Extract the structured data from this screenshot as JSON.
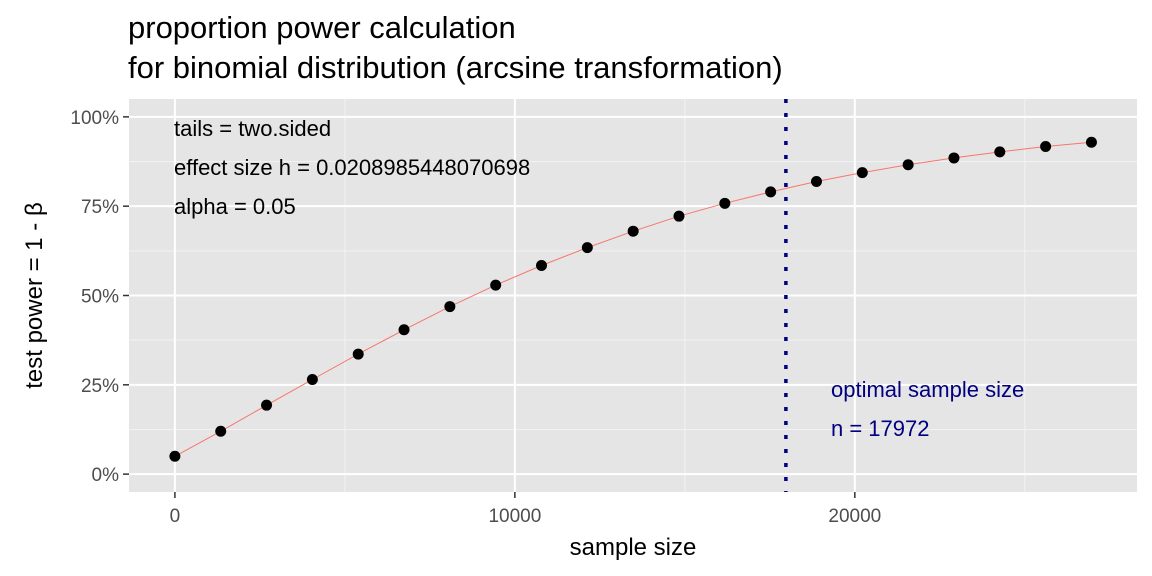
{
  "chart_data": {
    "type": "line",
    "title_line1": "proportion power calculation",
    "title_line2": "for binomial distribution (arcsine transformation)",
    "xlabel": "sample size",
    "ylabel": "test power = 1 - β",
    "xlim": [
      -1350,
      28300
    ],
    "ylim": [
      -0.05,
      1.05
    ],
    "x_ticks": [
      {
        "value": 0,
        "label": "0"
      },
      {
        "value": 10000,
        "label": "10000"
      },
      {
        "value": 20000,
        "label": "20000"
      }
    ],
    "y_ticks": [
      {
        "value": 0,
        "label": "0%"
      },
      {
        "value": 0.25,
        "label": "25%"
      },
      {
        "value": 0.5,
        "label": "50%"
      },
      {
        "value": 0.75,
        "label": "75%"
      },
      {
        "value": 1.0,
        "label": "100%"
      }
    ],
    "grid": true,
    "annotations": {
      "tails": "tails = two.sided",
      "effect_size": "effect size h = 0.0208985448070698",
      "alpha": "alpha = 0.05",
      "optimal_label": "optimal sample size",
      "optimal_n": "n = 17972"
    },
    "optimal_x": 17972,
    "series": [
      {
        "x": [
          0,
          1348,
          2696,
          4044,
          5392,
          6740,
          8088,
          9436,
          10784,
          12132,
          13480,
          14828,
          16176,
          17524,
          18872,
          20220,
          21568,
          22916,
          24264,
          25612,
          26960
        ],
        "y": [
          0.05,
          0.12,
          0.193,
          0.265,
          0.336,
          0.404,
          0.469,
          0.529,
          0.584,
          0.634,
          0.68,
          0.722,
          0.758,
          0.79,
          0.819,
          0.844,
          0.866,
          0.885,
          0.902,
          0.917,
          0.929
        ]
      }
    ],
    "colors": {
      "panel_bg": "#e5e5e5",
      "grid_major": "#ffffff",
      "grid_minor": "#f2f2f2",
      "line": "#f8766d",
      "point": "#000000",
      "vline": "#000080",
      "optimal_text": "#000080"
    }
  }
}
